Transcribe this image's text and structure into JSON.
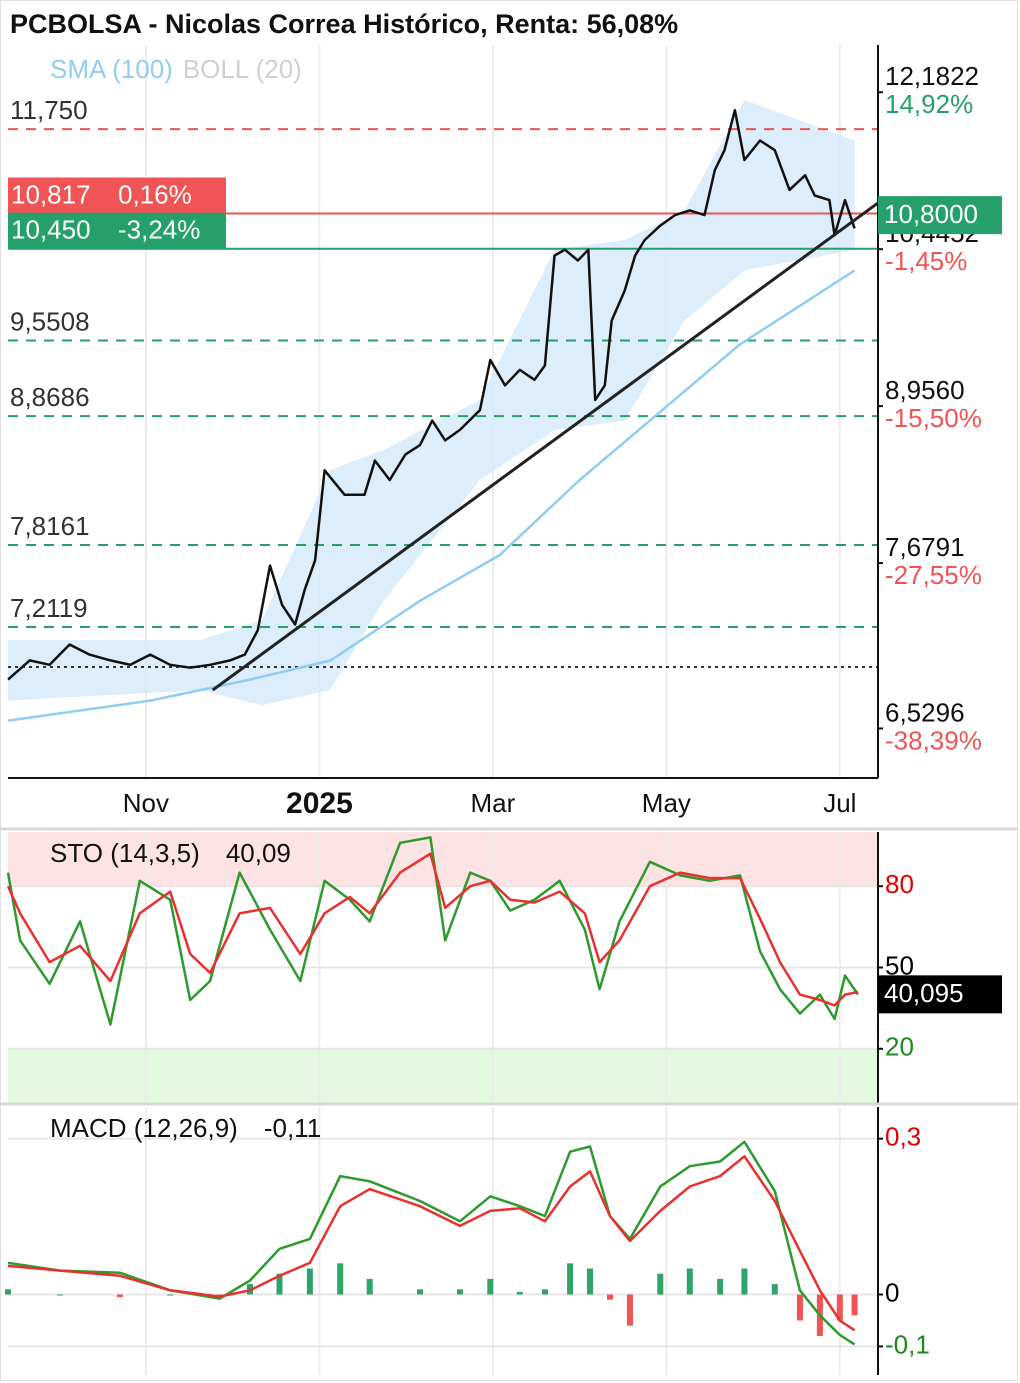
{
  "chart_data": [
    {
      "type": "line",
      "title": "PCBOLSA - Nicolas Correa Histórico, Renta: 56,08%",
      "log_scale": true,
      "xlim": [
        0.41,
        10.44
      ],
      "ylim": [
        6.22,
        12.76
      ],
      "xticks": [
        {
          "value": 2,
          "label": "Nov"
        },
        {
          "value": 4,
          "label": "2025"
        },
        {
          "value": 6,
          "label": "Mar"
        },
        {
          "value": 8,
          "label": "May"
        },
        {
          "value": 10,
          "label": "Jul"
        }
      ],
      "yticks": [
        {
          "value": 12.1822,
          "label": "12,1822"
        },
        {
          "value": 10.4452,
          "label": "10,4452"
        },
        {
          "value": 8.956,
          "label": "8,9560"
        },
        {
          "value": 7.6791,
          "label": "7,6791"
        },
        {
          "value": 6.5296,
          "label": "6,5296"
        }
      ],
      "ytick_changes": [
        "14,92%",
        "-1,45%",
        "-15,50%",
        "-27,55%",
        "-38,39%"
      ],
      "levels": [
        {
          "value": 11.75,
          "label": "11,750",
          "color": "#f05454"
        },
        {
          "value": 9.5508,
          "label": "9,5508",
          "color": "#26a06a"
        },
        {
          "value": 8.8686,
          "label": "8,8686",
          "color": "#26a06a"
        },
        {
          "value": 7.8161,
          "label": "7,8161",
          "color": "#26a06a"
        },
        {
          "value": 7.2119,
          "label": "7,2119",
          "color": "#26a06a"
        }
      ],
      "markers": [
        {
          "value": 10.817,
          "label": "10,817",
          "change": "0,16%",
          "color": "#f05454"
        },
        {
          "value": 10.45,
          "label": "10,450",
          "change": "-3,24%",
          "color": "#26a06a"
        }
      ],
      "last": {
        "value": 10.8,
        "label": "10,8000",
        "color": "#26a06a"
      },
      "reference_line": 6.935,
      "trendline": {
        "x": [
          2.77,
          10.44
        ],
        "values": [
          6.78,
          10.93
        ],
        "color": "#222222"
      },
      "band": {
        "name": "BOLL (20)",
        "color": "#d6eafa",
        "legend_color": "#d0d0d0",
        "x": [
          0.41,
          2.62,
          3.34,
          4.12,
          4.74,
          5.85,
          6.71,
          7.52,
          8.21,
          8.9,
          10.17
        ],
        "upper": [
          7.12,
          7.12,
          7.26,
          8.41,
          8.58,
          9.01,
          10.44,
          10.54,
          10.85,
          12.09,
          11.62
        ],
        "lower": [
          6.71,
          6.78,
          6.68,
          6.78,
          7.4,
          8.33,
          8.75,
          8.83,
          9.74,
          10.23,
          10.44
        ]
      },
      "series": [
        {
          "color": "#111111",
          "x": [
            0.41,
            0.66,
            0.89,
            1.12,
            1.35,
            1.59,
            1.82,
            2.05,
            2.28,
            2.51,
            2.74,
            2.97,
            3.14,
            3.29,
            3.43,
            3.57,
            3.72,
            3.83,
            3.95,
            4.06,
            4.29,
            4.52,
            4.64,
            4.81,
            4.99,
            5.16,
            5.3,
            5.45,
            5.62,
            5.85,
            5.97,
            6.14,
            6.31,
            6.48,
            6.6,
            6.71,
            6.83,
            6.98,
            7.1,
            7.18,
            7.29,
            7.37,
            7.52,
            7.64,
            7.75,
            7.93,
            8.1,
            8.27,
            8.44,
            8.56,
            8.67,
            8.79,
            8.9,
            9.08,
            9.25,
            9.42,
            9.6,
            9.71,
            9.88,
            9.94,
            10.06,
            10.17
          ],
          "values": [
            6.85,
            6.98,
            6.95,
            7.09,
            7.02,
            6.98,
            6.95,
            7.02,
            6.95,
            6.93,
            6.95,
            6.98,
            7.02,
            7.19,
            7.66,
            7.37,
            7.23,
            7.48,
            7.7,
            8.41,
            8.21,
            8.21,
            8.49,
            8.33,
            8.54,
            8.62,
            8.83,
            8.66,
            8.75,
            8.92,
            9.37,
            9.14,
            9.28,
            9.19,
            9.32,
            10.38,
            10.44,
            10.33,
            10.44,
            9.01,
            9.14,
            9.74,
            10.03,
            10.38,
            10.54,
            10.69,
            10.8,
            10.85,
            10.8,
            11.29,
            11.51,
            11.97,
            11.4,
            11.62,
            11.51,
            11.07,
            11.23,
            11.01,
            10.96,
            10.59,
            10.96,
            10.66
          ]
        },
        {
          "name": "SMA (100)",
          "color": "#8fcdf2",
          "x": [
            0.41,
            2.05,
            3.2,
            4.13,
            5.16,
            6.08,
            7.0,
            7.81,
            8.84,
            10.17
          ],
          "values": [
            6.58,
            6.71,
            6.85,
            6.98,
            7.4,
            7.74,
            8.33,
            8.83,
            9.51,
            10.23
          ]
        }
      ]
    },
    {
      "type": "line",
      "title": "STO (14,3,5)",
      "title_value": "40,09",
      "ylim": [
        0,
        100
      ],
      "yticks": [
        80,
        50,
        20
      ],
      "ytick_colors": [
        "#e00000",
        "#000000",
        "#1a8a1a"
      ],
      "grid": true,
      "zones": [
        {
          "from": 80,
          "to": 100,
          "color": "#fde3e3"
        },
        {
          "from": 0,
          "to": 20,
          "color": "#e3fae0"
        }
      ],
      "last": {
        "value": 40.095,
        "label": "40,095",
        "color": "#000000"
      },
      "series": [
        {
          "color": "#2e9a2e",
          "x": [
            0.41,
            0.55,
            0.89,
            1.24,
            1.59,
            1.93,
            2.28,
            2.51,
            2.74,
            3.08,
            3.43,
            3.78,
            4.06,
            4.35,
            4.58,
            4.93,
            5.28,
            5.45,
            5.74,
            5.97,
            6.2,
            6.48,
            6.77,
            7.06,
            7.23,
            7.46,
            7.81,
            8.16,
            8.5,
            8.85,
            9.08,
            9.31,
            9.54,
            9.77,
            9.94,
            10.06,
            10.21
          ],
          "values": [
            85,
            60,
            44,
            67,
            29,
            82,
            75,
            38,
            45,
            85,
            64,
            45,
            82,
            75,
            67,
            96,
            98,
            60,
            85,
            82,
            71,
            75,
            82,
            64,
            42,
            67,
            89,
            84,
            82,
            84,
            56,
            42,
            33,
            40,
            31,
            47,
            40
          ]
        },
        {
          "color": "#e8312f",
          "x": [
            0.41,
            0.55,
            0.89,
            1.24,
            1.59,
            1.93,
            2.28,
            2.51,
            2.74,
            3.08,
            3.43,
            3.78,
            4.06,
            4.35,
            4.58,
            4.93,
            5.28,
            5.45,
            5.74,
            5.97,
            6.2,
            6.48,
            6.77,
            7.06,
            7.23,
            7.46,
            7.81,
            8.16,
            8.5,
            8.85,
            9.08,
            9.31,
            9.54,
            9.77,
            9.94,
            10.06,
            10.21
          ],
          "values": [
            80,
            70,
            52,
            58,
            45,
            70,
            78,
            55,
            48,
            70,
            72,
            55,
            70,
            76,
            70,
            85,
            92,
            72,
            80,
            82,
            75,
            74,
            78,
            70,
            52,
            60,
            80,
            85,
            83,
            83,
            68,
            52,
            40,
            38,
            36,
            40,
            41
          ]
        }
      ]
    },
    {
      "type": "line",
      "title": "MACD (12,26,9)",
      "title_value": "-0,11",
      "ylim": [
        -0.155,
        0.361
      ],
      "yticks": [
        {
          "value": 0.3,
          "label": "0,3"
        },
        0,
        {
          "value": -0.1,
          "label": "-0,1"
        }
      ],
      "ytick_colors": [
        "#e00000",
        "#000000",
        "#1a8a1a"
      ],
      "grid": true,
      "histogram": {
        "up_color": "#2ea36a",
        "down_color": "#f05454",
        "x": [
          0.41,
          1.01,
          1.7,
          2.28,
          2.85,
          3.2,
          3.54,
          3.89,
          4.24,
          4.58,
          5.16,
          5.62,
          5.97,
          6.31,
          6.6,
          6.89,
          7.12,
          7.35,
          7.58,
          7.93,
          8.27,
          8.62,
          8.9,
          9.25,
          9.54,
          9.77,
          10.0,
          10.17
        ],
        "values": [
          0.01,
          0,
          -0.005,
          0,
          -0.005,
          0.02,
          0.04,
          0.05,
          0.06,
          0.03,
          0.01,
          0.01,
          0.03,
          0.005,
          0.01,
          0.06,
          0.05,
          -0.01,
          -0.06,
          0.04,
          0.05,
          0.03,
          0.05,
          0.02,
          -0.05,
          -0.08,
          -0.05,
          -0.04
        ]
      },
      "series": [
        {
          "color": "#2e9a2e",
          "x": [
            0.41,
            1.01,
            1.7,
            2.28,
            2.85,
            3.2,
            3.54,
            3.89,
            4.24,
            4.58,
            5.16,
            5.62,
            5.97,
            6.31,
            6.6,
            6.89,
            7.12,
            7.35,
            7.58,
            7.93,
            8.27,
            8.62,
            8.9,
            9.25,
            9.54,
            9.77,
            10.0,
            10.17
          ],
          "values": [
            0.061,
            0.046,
            0.042,
            0.008,
            -0.008,
            0.027,
            0.088,
            0.107,
            0.228,
            0.218,
            0.18,
            0.141,
            0.189,
            0.17,
            0.151,
            0.275,
            0.285,
            0.151,
            0.107,
            0.208,
            0.247,
            0.256,
            0.294,
            0.199,
            0.008,
            -0.04,
            -0.078,
            -0.096
          ]
        },
        {
          "color": "#e8312f",
          "x": [
            0.41,
            1.01,
            1.7,
            2.28,
            2.85,
            3.2,
            3.54,
            3.89,
            4.24,
            4.58,
            5.16,
            5.62,
            5.97,
            6.31,
            6.6,
            6.89,
            7.12,
            7.35,
            7.58,
            7.93,
            8.27,
            8.62,
            8.9,
            9.25,
            9.54,
            9.77,
            10.0,
            10.17
          ],
          "values": [
            0.055,
            0.046,
            0.036,
            0.008,
            -0.004,
            0.008,
            0.036,
            0.061,
            0.17,
            0.203,
            0.17,
            0.132,
            0.161,
            0.166,
            0.141,
            0.208,
            0.237,
            0.151,
            0.103,
            0.161,
            0.208,
            0.228,
            0.266,
            0.18,
            0.084,
            0.008,
            -0.05,
            -0.069
          ]
        }
      ]
    }
  ]
}
